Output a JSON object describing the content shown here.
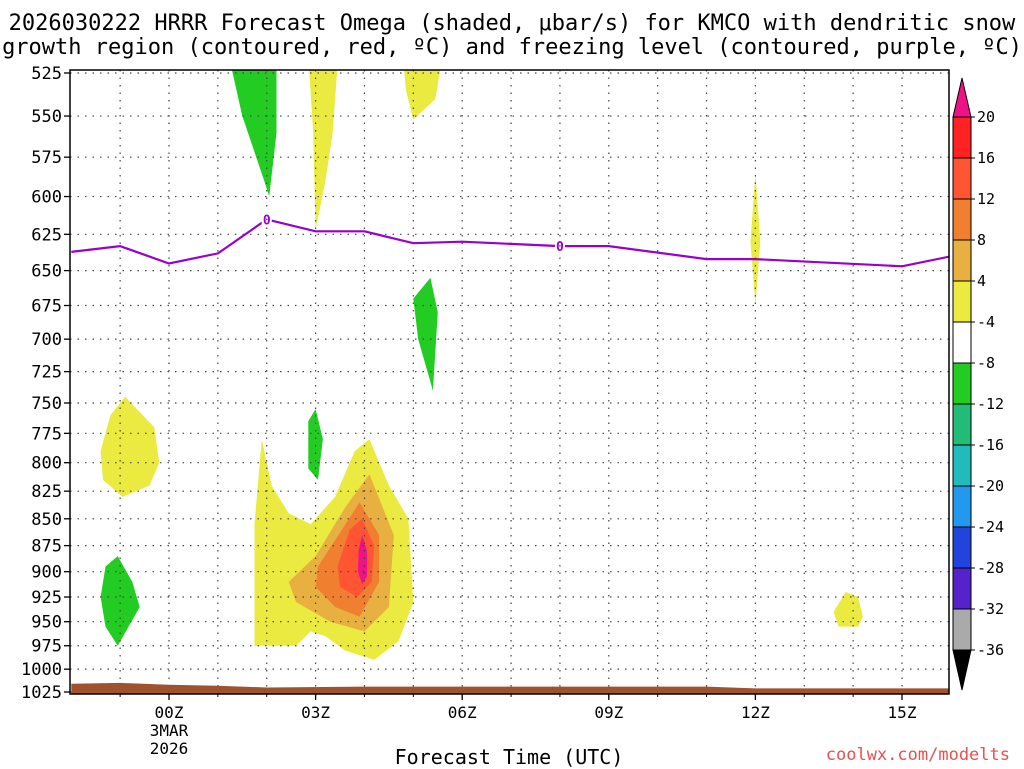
{
  "chart_data": {
    "type": "heatmap",
    "title_line1": "2026030222 HRRR Forecast Omega (shaded, μbar/s) for KMCO with dendritic snow",
    "title_line2": "growth region (contoured, red, ºC) and freezing level (contoured, purple, ºC)",
    "xlabel": "Forecast Time (UTC)",
    "ylabel": "",
    "credit": "coolwx.com/modelts",
    "x_ticks": [
      {
        "hour": 0,
        "label": "00Z",
        "sub1": "3MAR",
        "sub2": "2026"
      },
      {
        "hour": 3,
        "label": "03Z"
      },
      {
        "hour": 6,
        "label": "06Z"
      },
      {
        "hour": 9,
        "label": "09Z"
      },
      {
        "hour": 12,
        "label": "12Z"
      },
      {
        "hour": 15,
        "label": "15Z"
      }
    ],
    "xlim_hours": [
      -2,
      16
    ],
    "y_ticks": [
      525,
      550,
      575,
      600,
      625,
      650,
      675,
      700,
      725,
      750,
      775,
      800,
      825,
      850,
      875,
      900,
      925,
      950,
      975,
      1000,
      1025
    ],
    "ylim_hpa": [
      520,
      1030
    ],
    "y_scale": "log-pressure",
    "colorbar": {
      "labels": [
        "20",
        "16",
        "12",
        "8",
        "4",
        "-4",
        "-8",
        "-12",
        "-16",
        "-20",
        "-24",
        "-28",
        "-32",
        "-36"
      ],
      "bands": [
        {
          "color": "#ff2222"
        },
        {
          "color": "#ff5533"
        },
        {
          "color": "#f08030"
        },
        {
          "color": "#e8b040"
        },
        {
          "color": "#eaea40"
        },
        {
          "color": "#ffffff"
        },
        {
          "color": "#22cc22"
        },
        {
          "color": "#22bb77"
        },
        {
          "color": "#22bbbb"
        },
        {
          "color": "#2299ee"
        },
        {
          "color": "#2244dd"
        },
        {
          "color": "#5522cc"
        },
        {
          "color": "#9922cc"
        },
        {
          "color": "#aaaaaa"
        }
      ],
      "top_triangle_color": "#ee1188",
      "bottom_triangle_color": "#000000"
    },
    "omega_shaded_regions": [
      {
        "level": "-8",
        "color": "#22cc22",
        "points": [
          [
            1.26,
            520
          ],
          [
            2.2,
            520
          ],
          [
            2.2,
            560
          ],
          [
            2.05,
            600
          ],
          [
            1.95,
            590
          ],
          [
            1.5,
            550
          ]
        ]
      },
      {
        "level": "4",
        "color": "#eaea40",
        "points": [
          [
            2.86,
            520
          ],
          [
            3.45,
            520
          ],
          [
            3.35,
            560
          ],
          [
            3.2,
            590
          ],
          [
            3.0,
            622
          ],
          [
            2.95,
            560
          ]
        ]
      },
      {
        "level": "4",
        "color": "#eaea40",
        "points": [
          [
            4.8,
            520
          ],
          [
            5.57,
            520
          ],
          [
            5.45,
            540
          ],
          [
            5.0,
            552
          ],
          [
            4.85,
            535
          ]
        ]
      },
      {
        "level": "-8",
        "color": "#22cc22",
        "points": [
          [
            5.0,
            670
          ],
          [
            5.35,
            655
          ],
          [
            5.5,
            680
          ],
          [
            5.4,
            740
          ],
          [
            5.1,
            700
          ]
        ]
      },
      {
        "level": "4",
        "color": "#eaea40",
        "points": [
          [
            -1.4,
            790
          ],
          [
            -1.2,
            760
          ],
          [
            -0.9,
            745
          ],
          [
            -0.3,
            770
          ],
          [
            -0.2,
            800
          ],
          [
            -0.4,
            820
          ],
          [
            -0.95,
            830
          ],
          [
            -1.35,
            815
          ]
        ]
      },
      {
        "level": "-8",
        "color": "#22cc22",
        "points": [
          [
            2.85,
            765
          ],
          [
            3.0,
            755
          ],
          [
            3.15,
            780
          ],
          [
            3.05,
            815
          ],
          [
            2.85,
            805
          ]
        ]
      },
      {
        "level": "-8",
        "color": "#22cc22",
        "points": [
          [
            -1.4,
            925
          ],
          [
            -1.3,
            895
          ],
          [
            -1.05,
            885
          ],
          [
            -0.75,
            910
          ],
          [
            -0.6,
            935
          ],
          [
            -1.05,
            975
          ],
          [
            -1.3,
            955
          ]
        ]
      },
      {
        "level": "4",
        "color": "#eaea40",
        "points": [
          [
            1.75,
            855
          ],
          [
            1.9,
            780
          ],
          [
            2.1,
            820
          ],
          [
            2.45,
            845
          ],
          [
            2.9,
            855
          ],
          [
            3.4,
            830
          ],
          [
            3.8,
            790
          ],
          [
            4.1,
            780
          ],
          [
            4.5,
            820
          ],
          [
            4.9,
            850
          ],
          [
            5.0,
            930
          ],
          [
            4.7,
            970
          ],
          [
            4.2,
            990
          ],
          [
            3.6,
            980
          ],
          [
            3.2,
            965
          ],
          [
            2.9,
            960
          ],
          [
            2.6,
            975
          ],
          [
            1.75,
            975
          ]
        ]
      },
      {
        "level": "8",
        "color": "#e8b040",
        "points": [
          [
            2.45,
            910
          ],
          [
            3.0,
            885
          ],
          [
            3.6,
            840
          ],
          [
            4.1,
            810
          ],
          [
            4.6,
            865
          ],
          [
            4.5,
            935
          ],
          [
            4.0,
            960
          ],
          [
            3.3,
            950
          ],
          [
            2.6,
            930
          ]
        ]
      },
      {
        "level": "12",
        "color": "#f08030",
        "points": [
          [
            3.05,
            895
          ],
          [
            3.4,
            870
          ],
          [
            3.9,
            835
          ],
          [
            4.3,
            865
          ],
          [
            4.3,
            910
          ],
          [
            3.9,
            945
          ],
          [
            3.4,
            935
          ],
          [
            3.0,
            915
          ]
        ]
      },
      {
        "level": "16",
        "color": "#ff5533",
        "points": [
          [
            3.45,
            895
          ],
          [
            3.7,
            860
          ],
          [
            3.95,
            850
          ],
          [
            4.2,
            875
          ],
          [
            4.15,
            910
          ],
          [
            3.85,
            925
          ],
          [
            3.5,
            915
          ]
        ]
      },
      {
        "level": "20",
        "color": "#ee1188",
        "points": [
          [
            3.88,
            880
          ],
          [
            3.95,
            865
          ],
          [
            4.05,
            880
          ],
          [
            4.05,
            905
          ],
          [
            3.95,
            912
          ],
          [
            3.87,
            900
          ]
        ]
      },
      {
        "level": "4",
        "color": "#eaea40",
        "points": [
          [
            11.9,
            630
          ],
          [
            12.0,
            585
          ],
          [
            12.1,
            630
          ],
          [
            12.0,
            675
          ]
        ]
      },
      {
        "level": "4",
        "color": "#eaea40",
        "points": [
          [
            13.6,
            940
          ],
          [
            13.85,
            920
          ],
          [
            14.1,
            925
          ],
          [
            14.2,
            945
          ],
          [
            14.1,
            955
          ],
          [
            13.7,
            955
          ]
        ]
      }
    ],
    "freezing_level_series": {
      "name": "freezing level 0ºC",
      "color": "#9900cc",
      "label": "0",
      "points": [
        [
          -2,
          637
        ],
        [
          -1.0,
          633
        ],
        [
          0,
          645
        ],
        [
          1.0,
          638
        ],
        [
          2.0,
          615
        ],
        [
          3.0,
          623
        ],
        [
          4.0,
          623
        ],
        [
          5.0,
          631
        ],
        [
          6.0,
          630
        ],
        [
          8.0,
          633
        ],
        [
          9.0,
          633
        ],
        [
          11.0,
          642
        ],
        [
          12.0,
          642
        ],
        [
          15.0,
          647
        ],
        [
          16.0,
          640
        ]
      ]
    },
    "surface_terrain_color": "#a0522d"
  }
}
